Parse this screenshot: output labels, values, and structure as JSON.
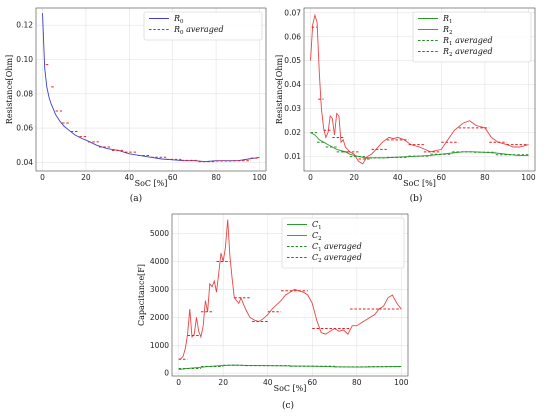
{
  "colors": {
    "blue": "#4040c8",
    "red": "#e84545",
    "green": "#2e9a2e",
    "red_dash": "#e02020",
    "green_dash": "#1f8a1f"
  },
  "chart_data": [
    {
      "type": "line",
      "caption": "(a)",
      "xlabel": "SoC [%]",
      "ylabel": "Resistance[Ohm]",
      "xlim": [
        -3,
        103
      ],
      "ylim": [
        0.035,
        0.13
      ],
      "xticks": [
        0,
        20,
        40,
        60,
        80,
        100
      ],
      "yticks": [
        0.04,
        0.06,
        0.08,
        0.1,
        0.12
      ],
      "legend_position": "top-right",
      "grid": true,
      "series": [
        {
          "name": "R_0",
          "label_base": "R",
          "label_sub": "0",
          "label_suffix": "",
          "color": "blue",
          "style": "solid",
          "x": [
            0,
            1,
            2,
            3,
            4,
            5,
            6,
            8,
            10,
            12,
            15,
            18,
            20,
            25,
            30,
            35,
            40,
            45,
            50,
            55,
            60,
            65,
            70,
            75,
            80,
            85,
            90,
            95,
            100
          ],
          "y": [
            0.127,
            0.095,
            0.084,
            0.078,
            0.074,
            0.071,
            0.068,
            0.064,
            0.061,
            0.059,
            0.056,
            0.054,
            0.053,
            0.05,
            0.048,
            0.047,
            0.045,
            0.044,
            0.043,
            0.042,
            0.0415,
            0.041,
            0.041,
            0.0405,
            0.041,
            0.041,
            0.041,
            0.042,
            0.043
          ]
        },
        {
          "name": "R_0 averaged",
          "label_base": "R",
          "label_sub": "0",
          "label_suffix": " averaged",
          "color": "red_dash",
          "style": "dashed-steps",
          "steps": [
            [
              1.5,
              3.5,
              0.097
            ],
            [
              4,
              6,
              0.084
            ],
            [
              6,
              9,
              0.07
            ],
            [
              9,
              13,
              0.063
            ],
            [
              13,
              17,
              0.058
            ],
            [
              17,
              21,
              0.055
            ],
            [
              21,
              26,
              0.052
            ],
            [
              26,
              32,
              0.049
            ],
            [
              32,
              38,
              0.047
            ],
            [
              38,
              44,
              0.046
            ],
            [
              44,
              50,
              0.044
            ],
            [
              50,
              57,
              0.043
            ],
            [
              57,
              64,
              0.0418
            ],
            [
              64,
              72,
              0.0412
            ],
            [
              72,
              80,
              0.0405
            ],
            [
              80,
              88,
              0.0408
            ],
            [
              88,
              96,
              0.041
            ],
            [
              96,
              100,
              0.0425
            ]
          ]
        }
      ]
    },
    {
      "type": "line",
      "caption": "(b)",
      "xlabel": "SoC [%]",
      "ylabel": "Resistance[Ohm]",
      "xlim": [
        -3,
        103
      ],
      "ylim": [
        0.004,
        0.072
      ],
      "xticks": [
        0,
        20,
        40,
        60,
        80,
        100
      ],
      "yticks": [
        0.01,
        0.02,
        0.03,
        0.04,
        0.05,
        0.06,
        0.07
      ],
      "legend_position": "top-right",
      "grid": true,
      "series": [
        {
          "name": "R_1",
          "label_base": "R",
          "label_sub": "1",
          "label_suffix": "",
          "color": "green",
          "style": "solid",
          "x": [
            0,
            2,
            4,
            6,
            8,
            10,
            12,
            14,
            16,
            18,
            20,
            25,
            30,
            35,
            40,
            45,
            50,
            55,
            60,
            65,
            70,
            75,
            80,
            85,
            90,
            95,
            100
          ],
          "y": [
            0.02,
            0.019,
            0.017,
            0.016,
            0.015,
            0.014,
            0.013,
            0.0125,
            0.012,
            0.011,
            0.0105,
            0.0095,
            0.0095,
            0.0095,
            0.0098,
            0.01,
            0.0102,
            0.0105,
            0.011,
            0.0115,
            0.012,
            0.012,
            0.0118,
            0.0115,
            0.011,
            0.0105,
            0.0105
          ]
        },
        {
          "name": "R_2",
          "label_base": "R",
          "label_sub": "2",
          "label_suffix": "",
          "color": "red",
          "style": "solid",
          "x": [
            0,
            1,
            2,
            3,
            4,
            5,
            6,
            7,
            8,
            9,
            10,
            11,
            12,
            13,
            14,
            15,
            16,
            18,
            20,
            22,
            24,
            26,
            28,
            30,
            33,
            36,
            38,
            40,
            43,
            46,
            50,
            55,
            60,
            63,
            66,
            70,
            73,
            76,
            80,
            83,
            86,
            90,
            93,
            96,
            100
          ],
          "y": [
            0.05,
            0.065,
            0.069,
            0.066,
            0.045,
            0.03,
            0.022,
            0.018,
            0.02,
            0.027,
            0.026,
            0.019,
            0.028,
            0.027,
            0.016,
            0.017,
            0.014,
            0.012,
            0.011,
            0.008,
            0.007,
            0.01,
            0.011,
            0.013,
            0.016,
            0.018,
            0.0175,
            0.018,
            0.017,
            0.015,
            0.014,
            0.012,
            0.013,
            0.017,
            0.021,
            0.024,
            0.025,
            0.023,
            0.022,
            0.018,
            0.016,
            0.015,
            0.014,
            0.014,
            0.015
          ]
        },
        {
          "name": "R_1 averaged",
          "label_base": "R",
          "label_sub": "1",
          "label_suffix": " averaged",
          "color": "green_dash",
          "style": "dashed-steps",
          "steps": [
            [
              0,
              3,
              0.02
            ],
            [
              3,
              7,
              0.016
            ],
            [
              7,
              12,
              0.014
            ],
            [
              12,
              18,
              0.012
            ],
            [
              18,
              25,
              0.01
            ],
            [
              25,
              35,
              0.0095
            ],
            [
              35,
              45,
              0.0097
            ],
            [
              45,
              55,
              0.0102
            ],
            [
              55,
              65,
              0.011
            ],
            [
              65,
              75,
              0.012
            ],
            [
              75,
              85,
              0.0118
            ],
            [
              85,
              100,
              0.0108
            ]
          ]
        },
        {
          "name": "R_2 averaged",
          "label_base": "R",
          "label_sub": "2",
          "label_suffix": " averaged",
          "color": "red_dash",
          "style": "dashed-steps",
          "steps": [
            [
              0.5,
              3,
              0.064
            ],
            [
              3.5,
              6,
              0.034
            ],
            [
              6,
              10,
              0.021
            ],
            [
              10,
              15,
              0.018
            ],
            [
              15,
              22,
              0.012
            ],
            [
              22,
              28,
              0.009
            ],
            [
              28,
              35,
              0.013
            ],
            [
              35,
              45,
              0.017
            ],
            [
              45,
              52,
              0.015
            ],
            [
              52,
              60,
              0.012
            ],
            [
              60,
              68,
              0.016
            ],
            [
              68,
              82,
              0.022
            ],
            [
              82,
              90,
              0.016
            ],
            [
              90,
              100,
              0.015
            ]
          ]
        }
      ]
    },
    {
      "type": "line",
      "caption": "(c)",
      "xlabel": "SoC [%]",
      "ylabel": "Capacitance[F]",
      "xlim": [
        -3,
        103
      ],
      "ylim": [
        -100,
        5700
      ],
      "xticks": [
        0,
        20,
        40,
        60,
        80,
        100
      ],
      "yticks": [
        0,
        1000,
        2000,
        3000,
        4000,
        5000
      ],
      "legend_position": "top-right",
      "grid": true,
      "series": [
        {
          "name": "C_1",
          "label_base": "C",
          "label_sub": "1",
          "label_suffix": "",
          "color": "green",
          "style": "solid",
          "x": [
            0,
            5,
            10,
            15,
            20,
            25,
            30,
            40,
            50,
            60,
            70,
            80,
            90,
            100
          ],
          "y": [
            130,
            180,
            210,
            250,
            280,
            290,
            280,
            270,
            260,
            250,
            230,
            220,
            230,
            240
          ]
        },
        {
          "name": "C_2",
          "label_base": "C",
          "label_sub": "2",
          "label_suffix": "",
          "color": "red",
          "style": "solid",
          "x": [
            0,
            1,
            2,
            3,
            4,
            5,
            6,
            7,
            8,
            9,
            10,
            11,
            12,
            13,
            14,
            15,
            16,
            17,
            18,
            19,
            20,
            21,
            22,
            23,
            24,
            25,
            26,
            27,
            28,
            29,
            30,
            32,
            34,
            36,
            38,
            40,
            42,
            44,
            46,
            48,
            50,
            52,
            54,
            56,
            58,
            60,
            62,
            64,
            66,
            68,
            70,
            72,
            74,
            76,
            78,
            80,
            82,
            84,
            86,
            88,
            90,
            92,
            94,
            96,
            98,
            100
          ],
          "y": [
            500,
            520,
            600,
            900,
            1400,
            2300,
            1300,
            1400,
            2000,
            1500,
            1300,
            1700,
            2600,
            2200,
            3200,
            3100,
            3300,
            2900,
            3600,
            4300,
            4000,
            4500,
            5500,
            4200,
            3400,
            2700,
            2600,
            2500,
            2700,
            2500,
            2300,
            2000,
            1900,
            1850,
            1950,
            2100,
            2300,
            2450,
            2600,
            2800,
            2900,
            3000,
            2950,
            2900,
            2800,
            2500,
            1900,
            1450,
            1400,
            1500,
            1600,
            1500,
            1550,
            1400,
            1700,
            1700,
            1800,
            1900,
            2000,
            2100,
            2300,
            2400,
            2700,
            2800,
            2500,
            2300
          ]
        },
        {
          "name": "C_1 averaged",
          "label_base": "C",
          "label_sub": "1",
          "label_suffix": " averaged",
          "color": "green_dash",
          "style": "dashed-steps",
          "steps": [
            [
              0,
              10,
              170
            ],
            [
              10,
              20,
              240
            ],
            [
              20,
              30,
              285
            ],
            [
              30,
              50,
              270
            ],
            [
              50,
              70,
              250
            ],
            [
              70,
              85,
              225
            ],
            [
              85,
              100,
              235
            ]
          ]
        },
        {
          "name": "C_2 averaged",
          "label_base": "C",
          "label_sub": "2",
          "label_suffix": " averaged",
          "color": "red_dash",
          "style": "dashed-steps",
          "steps": [
            [
              0,
              4,
              500
            ],
            [
              4,
              9,
              1350
            ],
            [
              10,
              15,
              2200
            ],
            [
              17,
              23,
              4000
            ],
            [
              25,
              32,
              2700
            ],
            [
              33,
              40,
              1850
            ],
            [
              40,
              46,
              2200
            ],
            [
              46,
              58,
              2950
            ],
            [
              60,
              77,
              1600
            ],
            [
              77,
              90,
              2300
            ],
            [
              90,
              100,
              2300
            ]
          ]
        }
      ]
    }
  ]
}
